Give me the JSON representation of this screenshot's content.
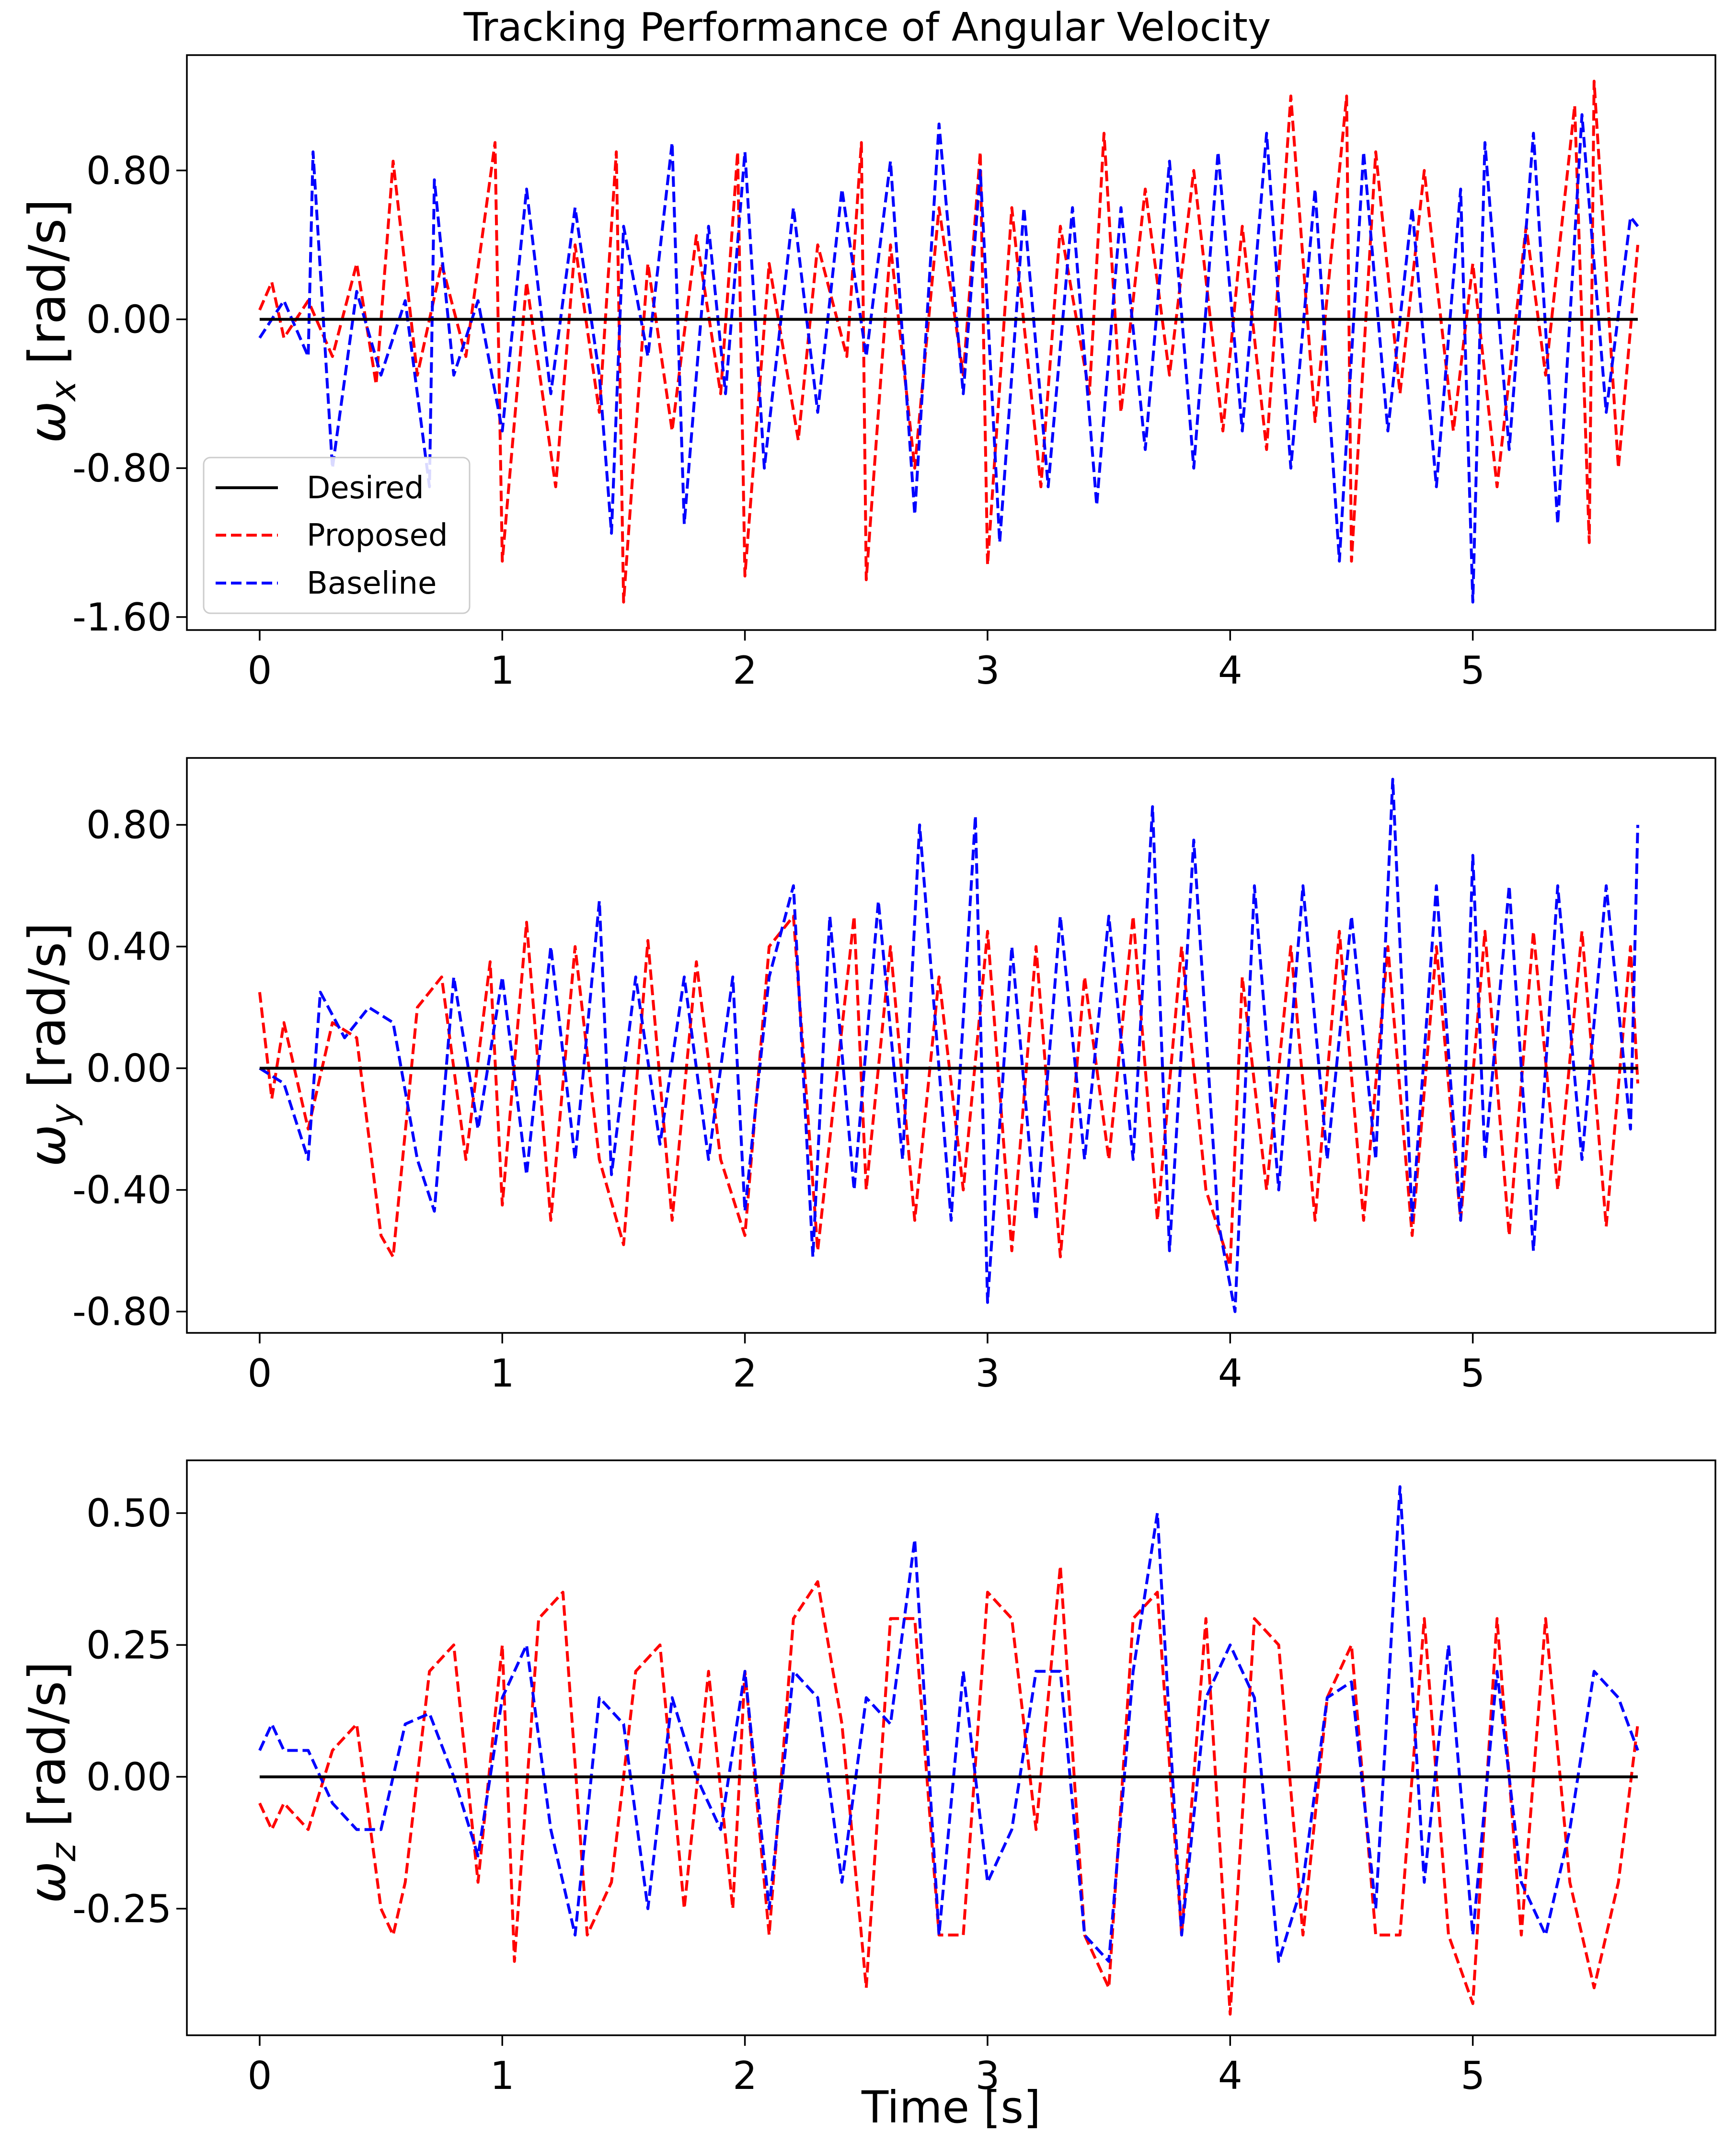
{
  "figure_title": "Tracking Performance of Angular Velocity",
  "legend": {
    "placement": "lower-left (top panel)",
    "entries": [
      {
        "label": "Desired",
        "color": "#000000",
        "style": "solid"
      },
      {
        "label": "Proposed",
        "color": "#ff0000",
        "style": "dashed"
      },
      {
        "label": "Baseline",
        "color": "#0000ff",
        "style": "dashed"
      }
    ]
  },
  "colors": {
    "desired": "#000000",
    "proposed": "#ff0000",
    "baseline": "#0000ff"
  },
  "chart_data": [
    {
      "type": "line",
      "title": "Tracking Performance of Angular Velocity",
      "xlabel": "",
      "ylabel_symbol": "ω",
      "ylabel_sub": "x",
      "ylabel_unit": "[rad/s]",
      "xlim": [
        -0.3,
        6.0
      ],
      "ylim": [
        -1.67,
        1.42
      ],
      "xticks": [
        0,
        1,
        2,
        3,
        4,
        5
      ],
      "xtick_labels": [
        "0",
        "1",
        "2",
        "3",
        "4",
        "5"
      ],
      "yticks": [
        0.8,
        0.0,
        -0.8,
        -1.6
      ],
      "ytick_labels": [
        "0.80",
        "0.00",
        "-0.80",
        "-1.60"
      ],
      "series": [
        {
          "name": "Desired",
          "x": [
            0,
            5.68
          ],
          "values": [
            0,
            0
          ]
        },
        {
          "name": "Proposed",
          "x": [
            0.0,
            0.05,
            0.1,
            0.2,
            0.3,
            0.4,
            0.48,
            0.55,
            0.65,
            0.75,
            0.85,
            0.97,
            1.0,
            1.1,
            1.22,
            1.3,
            1.4,
            1.47,
            1.5,
            1.6,
            1.7,
            1.8,
            1.9,
            1.97,
            2.0,
            2.1,
            2.22,
            2.3,
            2.42,
            2.48,
            2.5,
            2.6,
            2.7,
            2.8,
            2.9,
            2.97,
            3.0,
            3.1,
            3.22,
            3.3,
            3.42,
            3.48,
            3.55,
            3.65,
            3.75,
            3.85,
            3.97,
            4.05,
            4.15,
            4.25,
            4.35,
            4.48,
            4.5,
            4.6,
            4.7,
            4.8,
            4.92,
            5.0,
            5.1,
            5.22,
            5.3,
            5.42,
            5.48,
            5.5,
            5.6,
            5.68
          ],
          "values": [
            0.05,
            0.2,
            -0.1,
            0.1,
            -0.2,
            0.3,
            -0.35,
            0.85,
            -0.3,
            0.3,
            -0.2,
            0.95,
            -1.3,
            0.2,
            -0.9,
            0.4,
            -0.5,
            0.9,
            -1.52,
            0.3,
            -0.6,
            0.45,
            -0.4,
            0.9,
            -1.38,
            0.3,
            -0.65,
            0.4,
            -0.2,
            0.95,
            -1.4,
            0.4,
            -0.8,
            0.6,
            -0.3,
            0.9,
            -1.32,
            0.6,
            -0.9,
            0.5,
            -0.4,
            1.0,
            -0.5,
            0.7,
            -0.3,
            0.8,
            -0.6,
            0.5,
            -0.7,
            1.2,
            -0.55,
            1.2,
            -1.3,
            0.9,
            -0.4,
            0.8,
            -0.6,
            0.3,
            -0.9,
            0.5,
            -0.3,
            1.15,
            -1.2,
            1.28,
            -0.8,
            0.4
          ]
        },
        {
          "name": "Baseline",
          "x": [
            0.0,
            0.1,
            0.2,
            0.22,
            0.3,
            0.4,
            0.5,
            0.6,
            0.7,
            0.72,
            0.8,
            0.9,
            1.0,
            1.1,
            1.2,
            1.3,
            1.4,
            1.45,
            1.5,
            1.6,
            1.7,
            1.75,
            1.85,
            1.92,
            2.0,
            2.08,
            2.2,
            2.3,
            2.4,
            2.5,
            2.6,
            2.7,
            2.8,
            2.9,
            2.97,
            3.05,
            3.15,
            3.25,
            3.35,
            3.45,
            3.55,
            3.65,
            3.75,
            3.85,
            3.95,
            4.05,
            4.15,
            4.25,
            4.35,
            4.45,
            4.55,
            4.65,
            4.75,
            4.85,
            4.95,
            5.0,
            5.05,
            5.15,
            5.25,
            5.35,
            5.45,
            5.55,
            5.65,
            5.68
          ],
          "values": [
            -0.1,
            0.1,
            -0.2,
            0.9,
            -0.8,
            0.15,
            -0.3,
            0.1,
            -0.9,
            0.75,
            -0.3,
            0.1,
            -0.6,
            0.7,
            -0.4,
            0.6,
            -0.3,
            -1.15,
            0.5,
            -0.2,
            0.95,
            -1.1,
            0.5,
            -0.4,
            0.9,
            -0.8,
            0.6,
            -0.5,
            0.7,
            -0.2,
            0.85,
            -1.05,
            1.05,
            -0.4,
            0.8,
            -1.2,
            0.6,
            -0.9,
            0.6,
            -1.0,
            0.6,
            -0.7,
            0.85,
            -0.8,
            0.9,
            -0.6,
            1.0,
            -0.8,
            0.7,
            -1.3,
            0.9,
            -0.6,
            0.6,
            -0.9,
            0.7,
            -1.52,
            0.95,
            -0.7,
            1.0,
            -1.1,
            1.1,
            -0.5,
            0.55,
            0.5
          ]
        }
      ]
    },
    {
      "type": "line",
      "xlabel": "",
      "ylabel_symbol": "ω",
      "ylabel_sub": "y",
      "ylabel_unit": "[rad/s]",
      "xlim": [
        -0.3,
        6.0
      ],
      "ylim": [
        -0.87,
        1.02
      ],
      "xticks": [
        0,
        1,
        2,
        3,
        4,
        5
      ],
      "xtick_labels": [
        "0",
        "1",
        "2",
        "3",
        "4",
        "5"
      ],
      "yticks": [
        0.8,
        0.4,
        0.0,
        -0.4,
        -0.8
      ],
      "ytick_labels": [
        "0.80",
        "0.40",
        "0.00",
        "-0.40",
        "-0.80"
      ],
      "series": [
        {
          "name": "Desired",
          "x": [
            0,
            5.68
          ],
          "values": [
            0,
            0
          ]
        },
        {
          "name": "Proposed",
          "x": [
            0.0,
            0.05,
            0.1,
            0.2,
            0.3,
            0.4,
            0.5,
            0.55,
            0.65,
            0.75,
            0.85,
            0.95,
            1.0,
            1.1,
            1.2,
            1.3,
            1.4,
            1.5,
            1.6,
            1.7,
            1.8,
            1.9,
            2.0,
            2.1,
            2.2,
            2.3,
            2.45,
            2.5,
            2.6,
            2.7,
            2.8,
            2.9,
            3.0,
            3.1,
            3.2,
            3.3,
            3.4,
            3.5,
            3.6,
            3.7,
            3.8,
            3.9,
            4.0,
            4.05,
            4.15,
            4.25,
            4.35,
            4.45,
            4.55,
            4.65,
            4.75,
            4.85,
            4.95,
            5.05,
            5.15,
            5.25,
            5.35,
            5.45,
            5.55,
            5.65,
            5.68
          ],
          "values": [
            0.25,
            -0.1,
            0.15,
            -0.2,
            0.15,
            0.1,
            -0.55,
            -0.62,
            0.2,
            0.3,
            -0.3,
            0.35,
            -0.45,
            0.48,
            -0.5,
            0.4,
            -0.3,
            -0.58,
            0.42,
            -0.5,
            0.35,
            -0.3,
            -0.55,
            0.4,
            0.5,
            -0.6,
            0.5,
            -0.4,
            0.4,
            -0.5,
            0.3,
            -0.4,
            0.45,
            -0.6,
            0.4,
            -0.62,
            0.3,
            -0.3,
            0.5,
            -0.5,
            0.4,
            -0.4,
            -0.65,
            0.3,
            -0.4,
            0.4,
            -0.5,
            0.45,
            -0.5,
            0.4,
            -0.55,
            0.4,
            -0.5,
            0.45,
            -0.55,
            0.45,
            -0.4,
            0.45,
            -0.52,
            0.4,
            -0.05
          ]
        },
        {
          "name": "Baseline",
          "x": [
            0.0,
            0.1,
            0.2,
            0.25,
            0.35,
            0.45,
            0.55,
            0.65,
            0.72,
            0.8,
            0.9,
            1.0,
            1.1,
            1.2,
            1.3,
            1.4,
            1.45,
            1.55,
            1.65,
            1.75,
            1.85,
            1.95,
            2.0,
            2.1,
            2.2,
            2.28,
            2.35,
            2.45,
            2.55,
            2.65,
            2.72,
            2.85,
            2.95,
            3.0,
            3.1,
            3.2,
            3.3,
            3.4,
            3.5,
            3.6,
            3.68,
            3.75,
            3.85,
            3.95,
            4.02,
            4.1,
            4.2,
            4.3,
            4.4,
            4.5,
            4.6,
            4.67,
            4.75,
            4.85,
            4.95,
            5.0,
            5.05,
            5.15,
            5.25,
            5.35,
            5.45,
            5.55,
            5.65,
            5.68
          ],
          "values": [
            0.0,
            -0.05,
            -0.3,
            0.25,
            0.1,
            0.2,
            0.15,
            -0.3,
            -0.47,
            0.3,
            -0.2,
            0.3,
            -0.35,
            0.4,
            -0.3,
            0.55,
            -0.35,
            0.3,
            -0.25,
            0.3,
            -0.3,
            0.3,
            -0.47,
            0.3,
            0.6,
            -0.62,
            0.5,
            -0.4,
            0.55,
            -0.3,
            0.8,
            -0.5,
            0.83,
            -0.77,
            0.4,
            -0.5,
            0.5,
            -0.3,
            0.5,
            -0.3,
            0.86,
            -0.6,
            0.75,
            -0.5,
            -0.8,
            0.6,
            -0.4,
            0.6,
            -0.3,
            0.5,
            -0.3,
            0.95,
            -0.5,
            0.6,
            -0.5,
            0.7,
            -0.3,
            0.6,
            -0.6,
            0.6,
            -0.3,
            0.6,
            -0.2,
            0.8
          ]
        }
      ]
    },
    {
      "type": "line",
      "xlabel": "Time [s]",
      "ylabel_symbol": "ω",
      "ylabel_sub": "z",
      "ylabel_unit": "[rad/s]",
      "xlim": [
        -0.3,
        6.0
      ],
      "ylim": [
        -0.49,
        0.6
      ],
      "xticks": [
        0,
        1,
        2,
        3,
        4,
        5
      ],
      "xtick_labels": [
        "0",
        "1",
        "2",
        "3",
        "4",
        "5"
      ],
      "yticks": [
        0.5,
        0.25,
        0.0,
        -0.25
      ],
      "ytick_labels": [
        "0.50",
        "0.25",
        "0.00",
        "-0.25"
      ],
      "series": [
        {
          "name": "Desired",
          "x": [
            0,
            5.68
          ],
          "values": [
            0,
            0
          ]
        },
        {
          "name": "Proposed",
          "x": [
            0.0,
            0.05,
            0.1,
            0.2,
            0.3,
            0.4,
            0.5,
            0.55,
            0.6,
            0.7,
            0.8,
            0.9,
            1.0,
            1.05,
            1.15,
            1.25,
            1.35,
            1.45,
            1.55,
            1.65,
            1.75,
            1.85,
            1.95,
            2.0,
            2.1,
            2.2,
            2.3,
            2.4,
            2.5,
            2.6,
            2.7,
            2.8,
            2.9,
            3.0,
            3.1,
            3.2,
            3.3,
            3.4,
            3.5,
            3.6,
            3.7,
            3.8,
            3.9,
            4.0,
            4.1,
            4.2,
            4.3,
            4.4,
            4.5,
            4.6,
            4.7,
            4.8,
            4.9,
            5.0,
            5.1,
            5.2,
            5.3,
            5.4,
            5.5,
            5.6,
            5.68
          ],
          "values": [
            -0.05,
            -0.1,
            -0.05,
            -0.1,
            0.05,
            0.1,
            -0.25,
            -0.3,
            -0.2,
            0.2,
            0.25,
            -0.2,
            0.25,
            -0.35,
            0.3,
            0.35,
            -0.3,
            -0.2,
            0.2,
            0.25,
            -0.25,
            0.2,
            -0.25,
            0.2,
            -0.3,
            0.3,
            0.37,
            0.1,
            -0.4,
            0.3,
            0.3,
            -0.3,
            -0.3,
            0.35,
            0.3,
            -0.1,
            0.4,
            -0.3,
            -0.4,
            0.3,
            0.35,
            -0.3,
            0.3,
            -0.45,
            0.3,
            0.25,
            -0.3,
            0.15,
            0.25,
            -0.3,
            -0.3,
            0.3,
            -0.3,
            -0.43,
            0.3,
            -0.3,
            0.3,
            -0.2,
            -0.4,
            -0.2,
            0.1
          ]
        },
        {
          "name": "Baseline",
          "x": [
            0.0,
            0.05,
            0.1,
            0.2,
            0.3,
            0.4,
            0.5,
            0.6,
            0.7,
            0.8,
            0.9,
            1.0,
            1.1,
            1.2,
            1.3,
            1.4,
            1.5,
            1.6,
            1.7,
            1.8,
            1.9,
            2.0,
            2.1,
            2.2,
            2.3,
            2.4,
            2.5,
            2.6,
            2.7,
            2.8,
            2.9,
            3.0,
            3.1,
            3.2,
            3.3,
            3.4,
            3.5,
            3.6,
            3.7,
            3.8,
            3.9,
            4.0,
            4.1,
            4.2,
            4.3,
            4.4,
            4.5,
            4.6,
            4.7,
            4.8,
            4.9,
            5.0,
            5.1,
            5.2,
            5.3,
            5.4,
            5.5,
            5.6,
            5.68
          ],
          "values": [
            0.05,
            0.1,
            0.05,
            0.05,
            -0.05,
            -0.1,
            -0.1,
            0.1,
            0.12,
            0.0,
            -0.15,
            0.15,
            0.25,
            -0.1,
            -0.3,
            0.15,
            0.1,
            -0.25,
            0.15,
            0.0,
            -0.1,
            0.2,
            -0.25,
            0.2,
            0.15,
            -0.2,
            0.15,
            0.1,
            0.45,
            -0.3,
            0.2,
            -0.2,
            -0.1,
            0.2,
            0.2,
            -0.3,
            -0.35,
            0.2,
            0.5,
            -0.3,
            0.15,
            0.25,
            0.15,
            -0.35,
            -0.2,
            0.15,
            0.18,
            -0.25,
            0.55,
            -0.2,
            0.25,
            -0.3,
            0.2,
            -0.2,
            -0.3,
            -0.1,
            0.2,
            0.15,
            0.05
          ]
        }
      ]
    }
  ]
}
